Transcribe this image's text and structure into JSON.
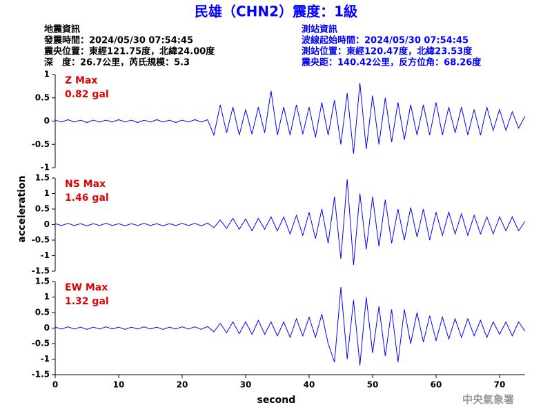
{
  "header": {
    "title": "民雄（CHN2）震度：1級",
    "left": [
      "地震資訊",
      "發震時間：2024/05/30 07:54:45",
      "震央位置：東經121.75度，北緯24.00度",
      "深　度：26.7公里，芮氏規模：5.3"
    ],
    "right": [
      "測站資訊",
      "波線起始時間：2024/05/30 07:54:45",
      "測站位置：東經120.47度，北緯23.53度",
      "震央距：140.42公里，反方位角：68.26度"
    ]
  },
  "ylabel": "acceleration",
  "footer": "中央氣象署",
  "chart_data": [
    {
      "type": "line",
      "annotation": [
        "Z Max",
        "0.82 gal"
      ],
      "color": "#0000ff",
      "xlim": [
        0,
        74
      ],
      "ylim": [
        -1,
        1
      ],
      "yticks": [
        -1,
        -0.5,
        0,
        0.5,
        1
      ],
      "x": [
        0,
        1,
        2,
        3,
        4,
        5,
        6,
        7,
        8,
        9,
        10,
        11,
        12,
        13,
        14,
        15,
        16,
        17,
        18,
        19,
        20,
        21,
        22,
        23,
        24,
        25,
        26,
        27,
        28,
        29,
        30,
        31,
        32,
        33,
        34,
        35,
        36,
        37,
        38,
        39,
        40,
        41,
        42,
        43,
        44,
        45,
        46,
        47,
        48,
        49,
        50,
        51,
        52,
        53,
        54,
        55,
        56,
        57,
        58,
        59,
        60,
        61,
        62,
        63,
        64,
        65,
        66,
        67,
        68,
        69,
        70,
        71,
        72,
        73,
        74
      ],
      "values": [
        0.02,
        -0.02,
        0.03,
        -0.02,
        0.02,
        -0.03,
        0.02,
        -0.02,
        0.02,
        -0.02,
        0.03,
        -0.02,
        0.02,
        -0.03,
        0.02,
        -0.02,
        0.03,
        -0.02,
        0.02,
        -0.03,
        0.02,
        -0.02,
        0.03,
        -0.02,
        0.03,
        -0.3,
        0.35,
        -0.25,
        0.3,
        -0.3,
        0.25,
        -0.28,
        0.3,
        -0.25,
        0.65,
        -0.3,
        0.3,
        -0.3,
        0.35,
        -0.28,
        0.3,
        -0.35,
        0.4,
        -0.3,
        0.45,
        -0.5,
        0.6,
        -0.7,
        0.82,
        -0.6,
        0.55,
        -0.5,
        0.5,
        -0.45,
        0.4,
        -0.4,
        0.35,
        -0.3,
        0.35,
        -0.3,
        0.4,
        -0.3,
        0.3,
        -0.25,
        0.3,
        -0.3,
        0.25,
        -0.3,
        0.3,
        -0.2,
        0.25,
        -0.2,
        0.2,
        -0.15,
        0.1
      ]
    },
    {
      "type": "line",
      "annotation": [
        "NS Max",
        "1.46 gal"
      ],
      "color": "#0000ff",
      "xlim": [
        0,
        74
      ],
      "ylim": [
        -1.5,
        1.5
      ],
      "yticks": [
        -1.5,
        -1,
        -0.5,
        0,
        0.5,
        1,
        1.5
      ],
      "x": [
        0,
        1,
        2,
        3,
        4,
        5,
        6,
        7,
        8,
        9,
        10,
        11,
        12,
        13,
        14,
        15,
        16,
        17,
        18,
        19,
        20,
        21,
        22,
        23,
        24,
        25,
        26,
        27,
        28,
        29,
        30,
        31,
        32,
        33,
        34,
        35,
        36,
        37,
        38,
        39,
        40,
        41,
        42,
        43,
        44,
        45,
        46,
        47,
        48,
        49,
        50,
        51,
        52,
        53,
        54,
        55,
        56,
        57,
        58,
        59,
        60,
        61,
        62,
        63,
        64,
        65,
        66,
        67,
        68,
        69,
        70,
        71,
        72,
        73,
        74
      ],
      "values": [
        0.03,
        -0.03,
        0.04,
        -0.03,
        0.03,
        -0.04,
        0.03,
        -0.03,
        0.04,
        -0.03,
        0.03,
        -0.04,
        0.03,
        -0.03,
        0.04,
        -0.03,
        0.03,
        -0.04,
        0.03,
        -0.03,
        0.04,
        -0.03,
        0.04,
        -0.04,
        0.05,
        -0.1,
        0.15,
        -0.12,
        0.2,
        -0.15,
        0.18,
        -0.2,
        0.2,
        -0.15,
        0.25,
        -0.2,
        0.25,
        -0.3,
        0.3,
        -0.35,
        0.4,
        -0.45,
        0.5,
        -0.6,
        0.9,
        -1.1,
        1.46,
        -1.3,
        1.0,
        -0.8,
        0.9,
        -0.7,
        0.8,
        -0.6,
        0.5,
        -0.5,
        0.55,
        -0.4,
        0.5,
        -0.5,
        0.4,
        -0.35,
        0.4,
        -0.3,
        0.35,
        -0.35,
        0.3,
        -0.3,
        0.25,
        -0.3,
        0.25,
        -0.2,
        0.25,
        -0.2,
        0.1
      ]
    },
    {
      "type": "line",
      "annotation": [
        "EW Max",
        "1.32 gal"
      ],
      "color": "#0000ff",
      "xlim": [
        0,
        74
      ],
      "ylim": [
        -1.5,
        1.5
      ],
      "yticks": [
        -1.5,
        -1,
        -0.5,
        0,
        0.5,
        1,
        1.5
      ],
      "xticks": [
        0,
        10,
        20,
        30,
        40,
        50,
        60,
        70
      ],
      "xlabel": "second",
      "x": [
        0,
        1,
        2,
        3,
        4,
        5,
        6,
        7,
        8,
        9,
        10,
        11,
        12,
        13,
        14,
        15,
        16,
        17,
        18,
        19,
        20,
        21,
        22,
        23,
        24,
        25,
        26,
        27,
        28,
        29,
        30,
        31,
        32,
        33,
        34,
        35,
        36,
        37,
        38,
        39,
        40,
        41,
        42,
        43,
        44,
        45,
        46,
        47,
        48,
        49,
        50,
        51,
        52,
        53,
        54,
        55,
        56,
        57,
        58,
        59,
        60,
        61,
        62,
        63,
        64,
        65,
        66,
        67,
        68,
        69,
        70,
        71,
        72,
        73,
        74
      ],
      "values": [
        0.03,
        -0.03,
        0.04,
        -0.03,
        0.03,
        -0.04,
        0.03,
        -0.03,
        0.04,
        -0.03,
        0.03,
        -0.04,
        0.03,
        -0.03,
        0.04,
        -0.03,
        0.03,
        -0.04,
        0.03,
        -0.03,
        0.04,
        -0.03,
        0.04,
        -0.04,
        0.05,
        -0.12,
        0.15,
        -0.15,
        0.2,
        -0.18,
        0.2,
        -0.2,
        0.25,
        -0.2,
        0.2,
        -0.25,
        0.2,
        -0.3,
        0.3,
        -0.25,
        0.35,
        -0.3,
        0.45,
        -0.5,
        -1.1,
        1.32,
        -1.0,
        0.9,
        -1.2,
        1.0,
        -0.8,
        0.7,
        -0.9,
        0.6,
        -1.1,
        0.6,
        -0.5,
        0.5,
        -0.45,
        0.4,
        -0.4,
        0.35,
        -0.35,
        0.3,
        -0.3,
        0.3,
        -0.25,
        0.25,
        -0.3,
        0.2,
        -0.2,
        0.2,
        -0.25,
        0.2,
        -0.1
      ]
    }
  ]
}
